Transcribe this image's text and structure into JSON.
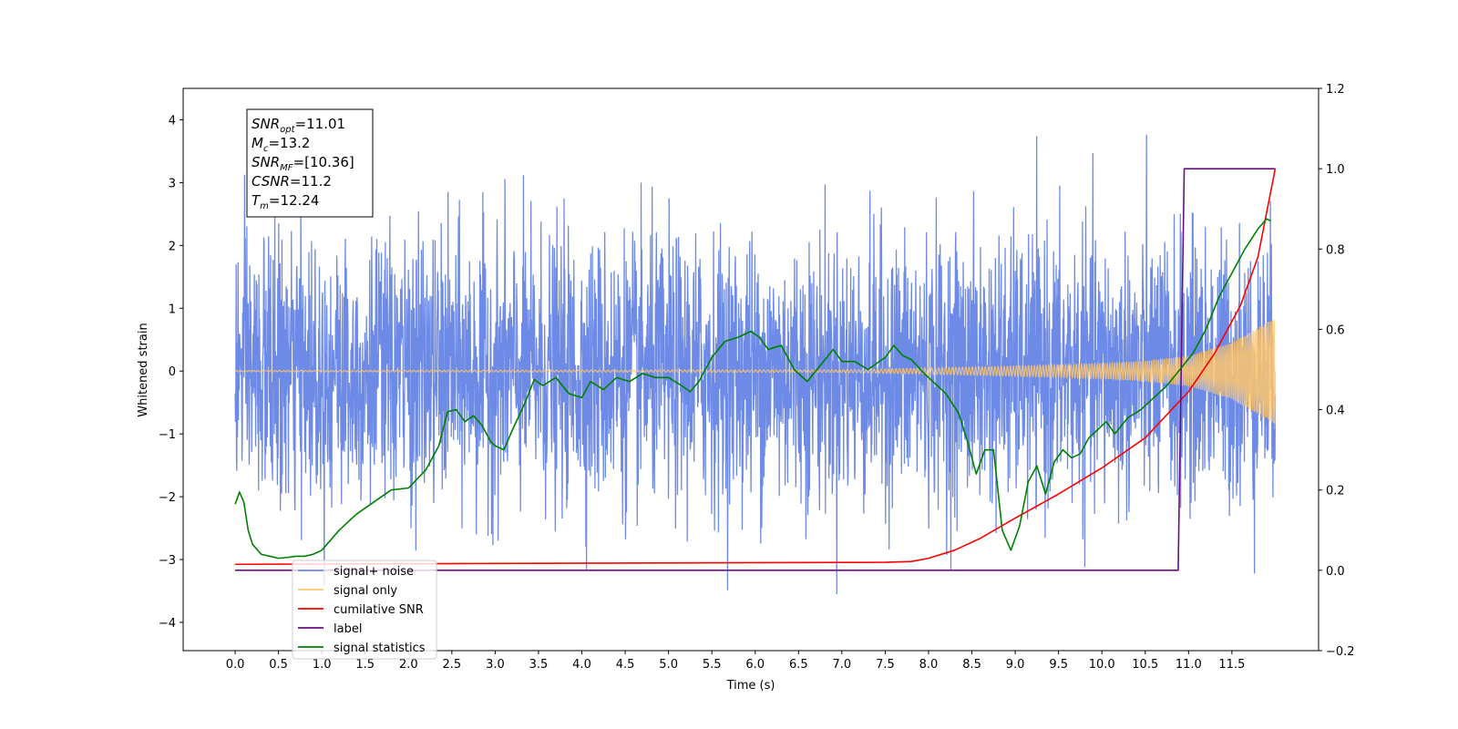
{
  "chart_data": {
    "type": "line",
    "xlabel": "Time (s)",
    "ylabel": "Whitened strain",
    "xlim": [
      -0.6,
      12.5
    ],
    "ylim": [
      -4.45,
      4.5
    ],
    "y2lim": [
      -0.2,
      1.2
    ],
    "grid": false,
    "x_ticks": [
      0.0,
      0.5,
      1.0,
      1.5,
      2.0,
      2.5,
      3.0,
      3.5,
      4.0,
      4.5,
      5.0,
      5.5,
      6.0,
      6.5,
      7.0,
      7.5,
      8.0,
      8.5,
      9.0,
      9.5,
      10.0,
      10.5,
      11.0,
      11.5
    ],
    "x_tick_labels": [
      "0.0",
      "0.5",
      "1.0",
      "1.5",
      "2.0",
      "2.5",
      "3.0",
      "3.5",
      "4.0",
      "4.5",
      "5.0",
      "5.5",
      "6.0",
      "6.5",
      "7.0",
      "7.5",
      "8.0",
      "8.5",
      "9.0",
      "9.5",
      "10.0",
      "10.5",
      "11.0",
      "11.5"
    ],
    "y_ticks": [
      -4,
      -3,
      -2,
      -1,
      0,
      1,
      2,
      3,
      4
    ],
    "y_tick_labels": [
      "−4",
      "−3",
      "−2",
      "−1",
      "0",
      "1",
      "2",
      "3",
      "4"
    ],
    "y2_ticks": [
      -0.2,
      0.0,
      0.2,
      0.4,
      0.6,
      0.8,
      1.0,
      1.2
    ],
    "y2_tick_labels": [
      "−0.2",
      "0.0",
      "0.2",
      "0.4",
      "0.6",
      "0.8",
      "1.0",
      "1.2"
    ],
    "info_box": [
      {
        "main": "SNR",
        "sub": "opt",
        "value": "=11.01"
      },
      {
        "main": "M",
        "sub": "c",
        "value": "=13.2"
      },
      {
        "main": "SNR",
        "sub": "MF",
        "value": "=[10.36]"
      },
      {
        "main": "CSNR",
        "sub": "",
        "value": "=11.2"
      },
      {
        "main": "T",
        "sub": "m",
        "value": "=12.24"
      }
    ],
    "legend": {
      "placement": "lower-left",
      "entries": [
        {
          "label": "signal+ noise",
          "color": "#6d8ae6"
        },
        {
          "label": "signal only",
          "color": "#ffc66b"
        },
        {
          "label": "cumilative SNR",
          "color": "#ff0000"
        },
        {
          "label": "label",
          "color": "#6a0d83"
        },
        {
          "label": "signal statistics",
          "color": "#008000"
        }
      ]
    },
    "series": [
      {
        "name": "signal+ noise",
        "axis": "left",
        "color": "#6d8ae6",
        "t_start": 0.0,
        "t_end": 12.0,
        "noise_std": 1.0,
        "envelope_hint": "approx ±2.5 typical, peaks to ~4"
      },
      {
        "name": "signal only",
        "axis": "left",
        "color": "#ffc66b",
        "t_start": 0.0,
        "t_end": 12.0,
        "amplitude_envelope": {
          "t": [
            0.0,
            7.0,
            8.0,
            9.0,
            10.0,
            10.5,
            11.0,
            11.5,
            12.0
          ],
          "a": [
            0.01,
            0.02,
            0.05,
            0.08,
            0.12,
            0.16,
            0.24,
            0.45,
            0.85
          ]
        }
      },
      {
        "name": "cumilative SNR",
        "axis": "right",
        "color": "#ff0000",
        "x": [
          0.0,
          7.5,
          7.8,
          8.0,
          8.3,
          8.6,
          9.0,
          9.5,
          10.0,
          10.5,
          11.0,
          11.3,
          11.6,
          11.8,
          12.0
        ],
        "y": [
          0.015,
          0.02,
          0.022,
          0.03,
          0.05,
          0.08,
          0.13,
          0.19,
          0.255,
          0.33,
          0.445,
          0.54,
          0.66,
          0.78,
          1.0
        ]
      },
      {
        "name": "label",
        "axis": "right",
        "color": "#6a0d83",
        "x": [
          0.0,
          10.88,
          10.95,
          12.0
        ],
        "y": [
          0.0,
          0.0,
          1.0,
          1.0
        ]
      },
      {
        "name": "signal statistics",
        "axis": "right",
        "color": "#008000",
        "x": [
          0.0,
          0.05,
          0.1,
          0.15,
          0.2,
          0.3,
          0.4,
          0.5,
          0.6,
          0.7,
          0.8,
          0.9,
          1.0,
          1.2,
          1.4,
          1.6,
          1.8,
          2.0,
          2.2,
          2.35,
          2.45,
          2.55,
          2.65,
          2.75,
          2.85,
          2.95,
          3.0,
          3.1,
          3.2,
          3.35,
          3.45,
          3.55,
          3.7,
          3.85,
          4.0,
          4.1,
          4.25,
          4.4,
          4.55,
          4.7,
          4.85,
          5.0,
          5.15,
          5.25,
          5.35,
          5.5,
          5.65,
          5.8,
          5.95,
          6.05,
          6.15,
          6.3,
          6.45,
          6.6,
          6.75,
          6.9,
          7.0,
          7.15,
          7.3,
          7.5,
          7.6,
          7.7,
          7.8,
          7.95,
          8.05,
          8.2,
          8.35,
          8.45,
          8.55,
          8.65,
          8.75,
          8.85,
          8.95,
          9.05,
          9.15,
          9.25,
          9.35,
          9.45,
          9.55,
          9.65,
          9.75,
          9.85,
          9.95,
          10.05,
          10.15,
          10.3,
          10.45,
          10.6,
          10.75,
          10.9,
          11.05,
          11.2,
          11.35,
          11.5,
          11.65,
          11.8,
          11.9,
          11.95
        ],
        "y": [
          0.165,
          0.195,
          0.17,
          0.1,
          0.065,
          0.04,
          0.035,
          0.03,
          0.032,
          0.035,
          0.035,
          0.04,
          0.05,
          0.1,
          0.14,
          0.17,
          0.2,
          0.205,
          0.25,
          0.31,
          0.395,
          0.4,
          0.37,
          0.385,
          0.36,
          0.32,
          0.31,
          0.3,
          0.35,
          0.42,
          0.475,
          0.46,
          0.48,
          0.44,
          0.43,
          0.47,
          0.45,
          0.48,
          0.47,
          0.49,
          0.48,
          0.48,
          0.46,
          0.445,
          0.47,
          0.53,
          0.57,
          0.58,
          0.595,
          0.58,
          0.55,
          0.56,
          0.5,
          0.47,
          0.51,
          0.55,
          0.52,
          0.52,
          0.5,
          0.53,
          0.56,
          0.535,
          0.525,
          0.49,
          0.47,
          0.44,
          0.39,
          0.32,
          0.24,
          0.3,
          0.3,
          0.1,
          0.05,
          0.11,
          0.22,
          0.26,
          0.19,
          0.27,
          0.3,
          0.28,
          0.29,
          0.33,
          0.35,
          0.37,
          0.34,
          0.38,
          0.4,
          0.43,
          0.46,
          0.5,
          0.54,
          0.6,
          0.68,
          0.74,
          0.8,
          0.85,
          0.875,
          0.87
        ]
      }
    ]
  }
}
